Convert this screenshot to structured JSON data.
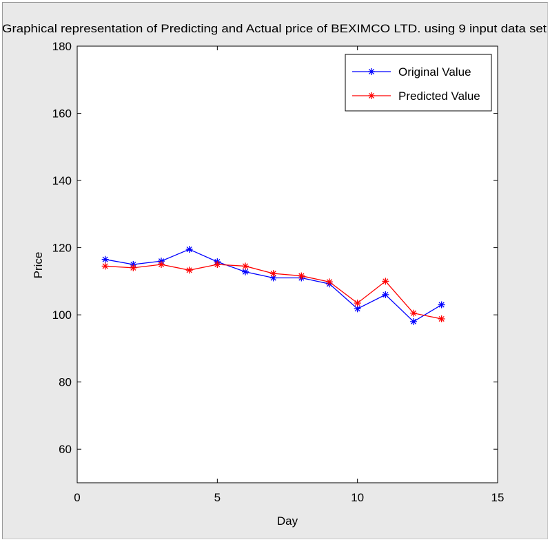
{
  "chart_data": {
    "type": "line",
    "title": "Graphical representation of Predicting and Actual price of BEXIMCO LTD. using 9 input data set",
    "xlabel": "Day",
    "ylabel": "Price",
    "xlim": [
      0,
      15
    ],
    "ylim": [
      50,
      180
    ],
    "xticks": [
      0,
      5,
      10,
      15
    ],
    "yticks": [
      60,
      80,
      100,
      120,
      140,
      160,
      180
    ],
    "grid": false,
    "legend_position": "top-right",
    "series": [
      {
        "name": "Original Value",
        "color": "#0000ff",
        "marker": "asterisk",
        "x": [
          1,
          2,
          3,
          4,
          5,
          6,
          7,
          8,
          9,
          10,
          11,
          12,
          13
        ],
        "y": [
          116.5,
          115.0,
          116.0,
          119.5,
          115.8,
          112.8,
          111.0,
          111.0,
          109.2,
          101.8,
          106.0,
          98.0,
          103.0
        ]
      },
      {
        "name": "Predicted Value",
        "color": "#ff0000",
        "marker": "asterisk",
        "x": [
          1,
          2,
          3,
          4,
          5,
          6,
          7,
          8,
          9,
          10,
          11,
          12,
          13
        ],
        "y": [
          114.5,
          114.0,
          115.0,
          113.3,
          115.0,
          114.5,
          112.3,
          111.6,
          109.8,
          103.5,
          110.0,
          100.5,
          98.8
        ]
      }
    ]
  }
}
